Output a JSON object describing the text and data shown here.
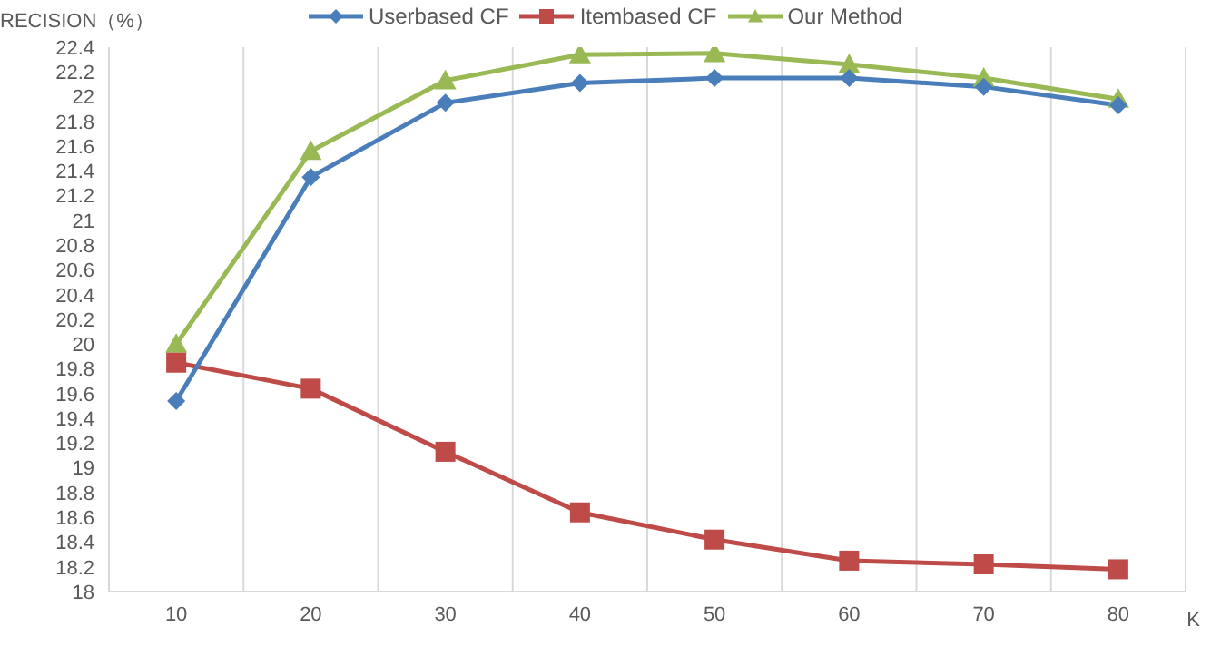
{
  "chart_data": {
    "type": "line",
    "ylabel": "RECISION（%）",
    "xlabel": "K",
    "categories": [
      "10",
      "20",
      "30",
      "40",
      "50",
      "60",
      "70",
      "80"
    ],
    "series": [
      {
        "name": "Userbased CF",
        "color": "#4a7ebb",
        "marker": "diamond",
        "values": [
          19.54,
          21.35,
          21.95,
          22.11,
          22.15,
          22.15,
          22.08,
          21.93
        ]
      },
      {
        "name": "Itembased CF",
        "color": "#be4b48",
        "marker": "square",
        "values": [
          19.85,
          19.64,
          19.13,
          18.64,
          18.42,
          18.25,
          18.22,
          18.18
        ]
      },
      {
        "name": "Our Method",
        "color": "#98b954",
        "marker": "triangle",
        "values": [
          20.0,
          21.56,
          22.13,
          22.34,
          22.35,
          22.26,
          22.15,
          21.98
        ]
      }
    ],
    "ylim": [
      18,
      22.4
    ],
    "yticks": [
      18,
      18.2,
      18.4,
      18.6,
      18.8,
      19,
      19.2,
      19.4,
      19.6,
      19.8,
      20,
      20.2,
      20.4,
      20.6,
      20.8,
      21,
      21.2,
      21.4,
      21.6,
      21.8,
      22,
      22.2,
      22.4
    ],
    "grid": "x",
    "legend": "top",
    "line_style": "solid"
  }
}
